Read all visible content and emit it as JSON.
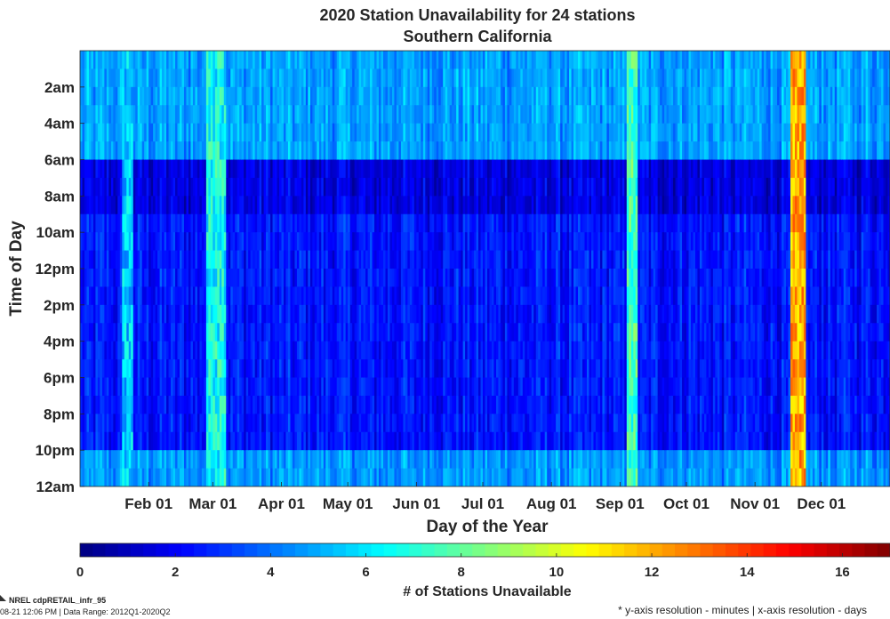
{
  "chart_data": {
    "type": "heatmap",
    "title": "2020 Station Unavailability for 24 stations",
    "subtitle": "Southern California",
    "xlabel": "Day of the Year",
    "ylabel": "Time of Day",
    "x_tick_labels": [
      "Feb 01",
      "Mar 01",
      "Apr 01",
      "May 01",
      "Jun 01",
      "Jul 01",
      "Aug 01",
      "Sep 01",
      "Oct 01",
      "Nov 01",
      "Dec 01"
    ],
    "x_tick_day_of_year": [
      32,
      61,
      92,
      122,
      153,
      183,
      214,
      245,
      275,
      306,
      336
    ],
    "x_range_days": [
      1,
      366
    ],
    "y_tick_labels": [
      "2am",
      "4am",
      "6am",
      "8am",
      "10am",
      "12pm",
      "2pm",
      "4pm",
      "6pm",
      "8pm",
      "10pm",
      "12am"
    ],
    "y_tick_hours": [
      2,
      4,
      6,
      8,
      10,
      12,
      14,
      16,
      18,
      20,
      22,
      24
    ],
    "y_range_hours": [
      0,
      24
    ],
    "colorbar": {
      "label": "# of Stations Unavailable",
      "ticks": [
        0,
        2,
        4,
        6,
        8,
        10,
        12,
        14,
        16
      ],
      "range": [
        0,
        17
      ],
      "colormap": "jet"
    },
    "hourly_mean_unavailable": [
      {
        "hours": "00-06",
        "value": 4.8
      },
      {
        "hours": "06-09",
        "value": 1.6
      },
      {
        "hours": "09-22",
        "value": 2.4
      },
      {
        "hours": "22-24",
        "value": 4.6
      }
    ],
    "high_unavailability_periods": [
      {
        "start_day": 20,
        "end_day": 24,
        "value": 5.5
      },
      {
        "start_day": 58,
        "end_day": 66,
        "value": 6.5
      },
      {
        "start_day": 248,
        "end_day": 252,
        "value": 7.5
      },
      {
        "start_day": 322,
        "end_day": 328,
        "value": 12
      }
    ]
  },
  "footer": {
    "source": "NREL cdpRETAIL_infr_95",
    "date_range": "08-21 12:06 PM | Data Range: 2012Q1-2020Q2",
    "note": "* y-axis resolution - minutes | x-axis resolution - days"
  }
}
